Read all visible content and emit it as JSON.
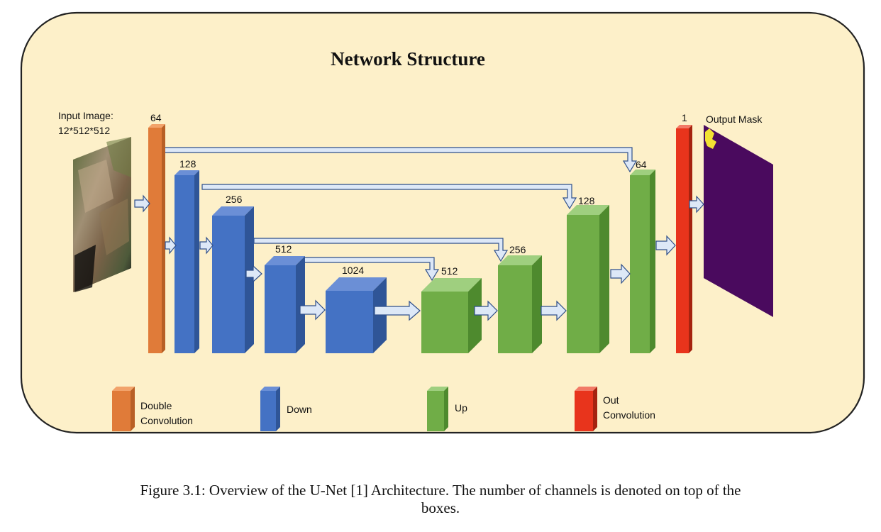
{
  "title": "Network Structure",
  "input": {
    "label_line1": "Input Image:",
    "label_line2": "12*512*512"
  },
  "output": {
    "label": "Output Mask"
  },
  "channels": {
    "inc": "64",
    "down1": "128",
    "down2": "256",
    "down3": "512",
    "down4": "1024",
    "up1": "512",
    "up2": "256",
    "up3": "128",
    "up4": "64",
    "outc": "1"
  },
  "legend": {
    "double_conv_line1": "Double",
    "double_conv_line2": "Convolution",
    "down": "Down",
    "up": "Up",
    "out_conv_line1": "Out",
    "out_conv_line2": "Convolution"
  },
  "colors": {
    "background_panel": "#fdf0c9",
    "double_convolution": "#e07b39",
    "down": "#4472c4",
    "up": "#70ad47",
    "out_convolution": "#e8341c",
    "output_mask": "#4a0a5e",
    "arrow_fill": "#dde8f7",
    "arrow_stroke": "#2f4f8a"
  },
  "caption": {
    "line1": "Figure 3.1: Overview of the U-Net [1] Architecture. The number of channels is denoted on top of the",
    "line2": "boxes."
  }
}
